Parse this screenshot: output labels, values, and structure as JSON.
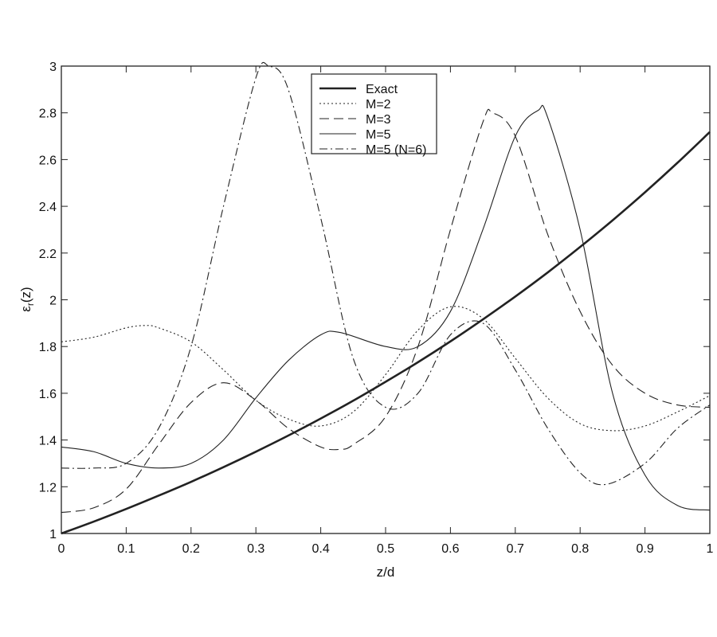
{
  "chart_data": {
    "type": "line",
    "title": "",
    "xlabel": "z/d",
    "ylabel": "ε",
    "ylabel_sub": "r",
    "ylabel_suffix": "(z)",
    "xlim": [
      0,
      1
    ],
    "ylim": [
      1,
      3
    ],
    "xticks": [
      "0",
      "0.1",
      "0.2",
      "0.3",
      "0.4",
      "0.5",
      "0.6",
      "0.7",
      "0.8",
      "0.9",
      "1"
    ],
    "yticks": [
      "1",
      "1.2",
      "1.4",
      "1.6",
      "1.8",
      "2",
      "2.2",
      "2.4",
      "2.6",
      "2.8",
      "3"
    ],
    "grid": false,
    "legend_position": "top-center",
    "series": [
      {
        "name": "Exact",
        "style": "solid-thick",
        "x": [
          0,
          0.05,
          0.1,
          0.15,
          0.2,
          0.25,
          0.3,
          0.35,
          0.4,
          0.45,
          0.5,
          0.55,
          0.6,
          0.65,
          0.7,
          0.75,
          0.8,
          0.85,
          0.9,
          0.95,
          1
        ],
        "y": [
          1.0,
          1.051,
          1.105,
          1.162,
          1.221,
          1.284,
          1.35,
          1.419,
          1.492,
          1.568,
          1.649,
          1.733,
          1.822,
          1.916,
          2.014,
          2.117,
          2.226,
          2.34,
          2.46,
          2.586,
          2.718
        ]
      },
      {
        "name": "M=2",
        "style": "dotted",
        "x": [
          0,
          0.05,
          0.1,
          0.13,
          0.15,
          0.2,
          0.25,
          0.3,
          0.35,
          0.4,
          0.45,
          0.5,
          0.55,
          0.6,
          0.65,
          0.7,
          0.75,
          0.8,
          0.85,
          0.9,
          0.95,
          1
        ],
        "y": [
          1.82,
          1.84,
          1.88,
          1.89,
          1.88,
          1.82,
          1.7,
          1.57,
          1.49,
          1.46,
          1.52,
          1.68,
          1.87,
          1.97,
          1.92,
          1.75,
          1.58,
          1.47,
          1.44,
          1.46,
          1.52,
          1.59
        ]
      },
      {
        "name": "M=3",
        "style": "dashed",
        "x": [
          0,
          0.05,
          0.1,
          0.15,
          0.2,
          0.25,
          0.3,
          0.35,
          0.4,
          0.43,
          0.45,
          0.5,
          0.55,
          0.6,
          0.65,
          0.665,
          0.7,
          0.75,
          0.8,
          0.85,
          0.9,
          0.95,
          1
        ],
        "y": [
          1.09,
          1.11,
          1.19,
          1.38,
          1.56,
          1.645,
          1.57,
          1.45,
          1.37,
          1.36,
          1.38,
          1.5,
          1.8,
          2.3,
          2.76,
          2.8,
          2.7,
          2.28,
          1.95,
          1.72,
          1.6,
          1.55,
          1.54
        ]
      },
      {
        "name": "M=5",
        "style": "solid-thin",
        "x": [
          0,
          0.05,
          0.1,
          0.15,
          0.2,
          0.25,
          0.3,
          0.35,
          0.4,
          0.43,
          0.5,
          0.55,
          0.6,
          0.65,
          0.7,
          0.735,
          0.75,
          0.8,
          0.85,
          0.9,
          0.95,
          1
        ],
        "y": [
          1.37,
          1.35,
          1.3,
          1.28,
          1.3,
          1.4,
          1.58,
          1.74,
          1.85,
          1.86,
          1.8,
          1.8,
          1.95,
          2.3,
          2.7,
          2.81,
          2.78,
          2.3,
          1.6,
          1.25,
          1.12,
          1.1
        ]
      },
      {
        "name": "M=5 (N=6)",
        "style": "dash-dot",
        "x": [
          0,
          0.05,
          0.1,
          0.15,
          0.2,
          0.25,
          0.3,
          0.32,
          0.35,
          0.4,
          0.45,
          0.5,
          0.55,
          0.6,
          0.65,
          0.7,
          0.75,
          0.8,
          0.84,
          0.9,
          0.95,
          1
        ],
        "y": [
          1.28,
          1.28,
          1.3,
          1.45,
          1.8,
          2.4,
          2.95,
          3.0,
          2.9,
          2.35,
          1.75,
          1.54,
          1.6,
          1.85,
          1.9,
          1.7,
          1.45,
          1.26,
          1.21,
          1.3,
          1.45,
          1.55
        ]
      }
    ]
  }
}
